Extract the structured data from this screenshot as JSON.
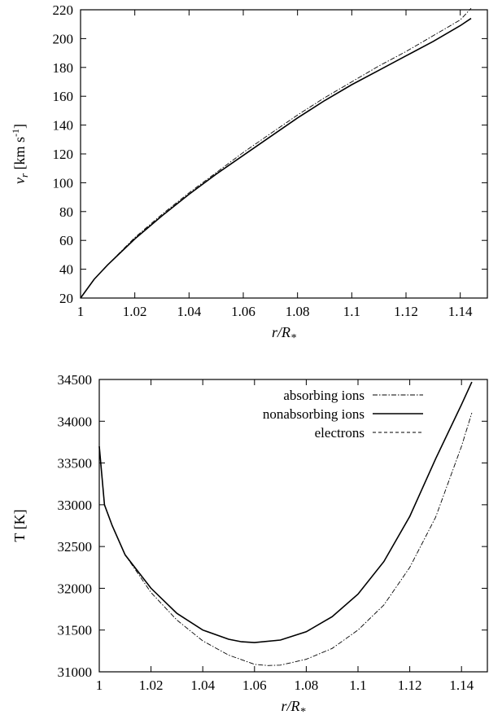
{
  "chart_data": [
    {
      "type": "line",
      "title": "",
      "xlabel": "r/R",
      "xlabel_sub": "*",
      "ylabel_main": "v",
      "ylabel_sub": "r",
      "ylabel_units": "[km s",
      "ylabel_sup": "-1",
      "ylabel_close": "]",
      "xlim": [
        1,
        1.15
      ],
      "ylim": [
        20,
        220
      ],
      "xticks": [
        "1",
        "1.02",
        "1.04",
        "1.06",
        "1.08",
        "1.1",
        "1.12",
        "1.14"
      ],
      "yticks": [
        "20",
        "40",
        "60",
        "80",
        "100",
        "120",
        "140",
        "160",
        "180",
        "200",
        "220"
      ],
      "series": [
        {
          "style": "dashdot",
          "x": [
            1.0,
            1.005,
            1.01,
            1.02,
            1.03,
            1.04,
            1.05,
            1.06,
            1.07,
            1.08,
            1.09,
            1.1,
            1.11,
            1.12,
            1.13,
            1.14,
            1.144
          ],
          "y": [
            20,
            33,
            43,
            62,
            78,
            93,
            107,
            121,
            134,
            147,
            159,
            170,
            181,
            191,
            202,
            213,
            221
          ]
        },
        {
          "style": "solid",
          "x": [
            1.0,
            1.005,
            1.01,
            1.02,
            1.03,
            1.04,
            1.05,
            1.06,
            1.07,
            1.08,
            1.09,
            1.1,
            1.11,
            1.12,
            1.13,
            1.14,
            1.144
          ],
          "y": [
            20,
            33,
            43,
            61,
            77,
            92,
            106,
            119,
            132,
            145,
            157,
            168,
            178,
            188,
            198,
            209,
            214
          ]
        }
      ]
    },
    {
      "type": "line",
      "title": "",
      "xlabel": "r/R",
      "xlabel_sub": "*",
      "ylabel": "T [K]",
      "xlim": [
        1,
        1.15
      ],
      "ylim": [
        31000,
        34500
      ],
      "xticks": [
        "1",
        "1.02",
        "1.04",
        "1.06",
        "1.08",
        "1.1",
        "1.12",
        "1.14"
      ],
      "yticks": [
        "31000",
        "31500",
        "32000",
        "32500",
        "33000",
        "33500",
        "34000",
        "34500"
      ],
      "legend_position": "top-right",
      "series": [
        {
          "name": "absorbing ions",
          "style": "dashdot",
          "x": [
            1.0,
            1.002,
            1.005,
            1.01,
            1.02,
            1.03,
            1.04,
            1.05,
            1.06,
            1.065,
            1.07,
            1.08,
            1.09,
            1.1,
            1.11,
            1.12,
            1.13,
            1.14,
            1.144
          ],
          "y": [
            33700,
            33000,
            32750,
            32400,
            31950,
            31620,
            31370,
            31200,
            31090,
            31075,
            31080,
            31150,
            31280,
            31500,
            31800,
            32250,
            32850,
            33700,
            34100
          ]
        },
        {
          "name": "nonabsorbing ions",
          "style": "solid",
          "x": [
            1.0,
            1.002,
            1.005,
            1.01,
            1.02,
            1.03,
            1.04,
            1.05,
            1.055,
            1.06,
            1.07,
            1.08,
            1.09,
            1.1,
            1.11,
            1.12,
            1.13,
            1.14,
            1.144
          ],
          "y": [
            33700,
            33000,
            32750,
            32400,
            32000,
            31700,
            31500,
            31390,
            31360,
            31350,
            31380,
            31480,
            31660,
            31930,
            32320,
            32860,
            33550,
            34200,
            34470
          ]
        },
        {
          "name": "electrons",
          "style": "dashed",
          "x": [
            1.0,
            1.002,
            1.005,
            1.01,
            1.02,
            1.03,
            1.04,
            1.05,
            1.055,
            1.06,
            1.07,
            1.08,
            1.09,
            1.1,
            1.11,
            1.12,
            1.13,
            1.14,
            1.144
          ],
          "y": [
            33700,
            33000,
            32750,
            32400,
            32000,
            31700,
            31500,
            31390,
            31360,
            31350,
            31380,
            31480,
            31660,
            31930,
            32320,
            32860,
            33550,
            34200,
            34470
          ]
        }
      ]
    }
  ]
}
